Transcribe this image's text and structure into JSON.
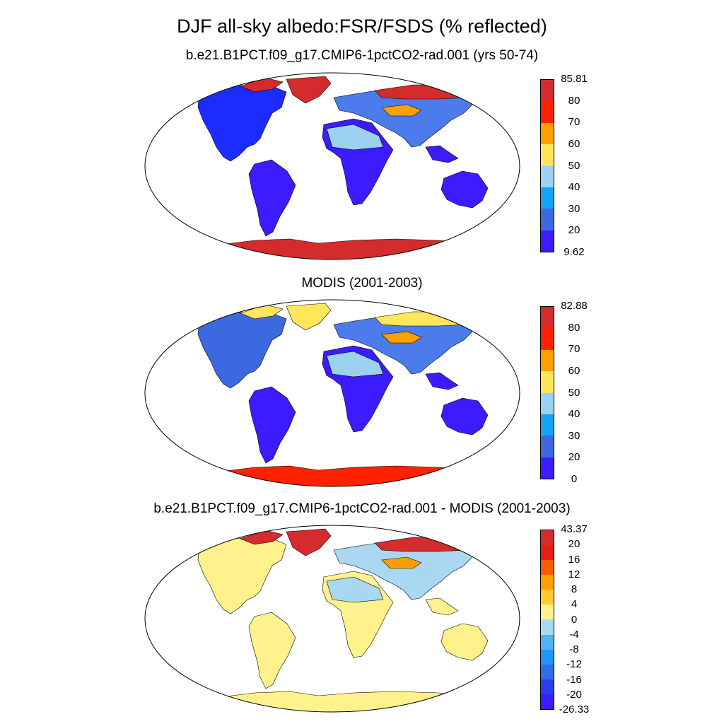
{
  "title": "DJF all-sky albedo:FSR/FSDS (% reflected)",
  "panels": [
    {
      "subtitle": "b.e21.B1PCT.f09_g17.CMIP6-1pctCO2-rad.001 (yrs 50-74)",
      "colorbar": {
        "labels": [
          "85.81",
          "80",
          "70",
          "60",
          "50",
          "40",
          "30",
          "20",
          "9.62"
        ],
        "colors": [
          "#d42c2c",
          "#ff2200",
          "#ff9f00",
          "#ffe65a",
          "#9cd2f0",
          "#14a5fa",
          "#3d69e0",
          "#3a1cff"
        ]
      },
      "fills": {
        "northAmerica": "#1c2cff",
        "greenland": "#d42c2c",
        "southAmerica": "#3a1cff",
        "africa": "#3a1cff",
        "sahara": "#9cd2f0",
        "eurasia": "#4c7cec",
        "siberia": "#d42c2c",
        "centralAsia": "#ff9f00",
        "australia": "#3a1cff",
        "antarctica": "#d42c2c",
        "arcticIslands": "#d42c2c",
        "seAsia": "#3a1cff"
      }
    },
    {
      "subtitle": "MODIS (2001-2003)",
      "colorbar": {
        "labels": [
          "82.88",
          "80",
          "70",
          "60",
          "50",
          "40",
          "30",
          "20",
          "0"
        ],
        "colors": [
          "#d42c2c",
          "#ff2200",
          "#ff9f00",
          "#ffe65a",
          "#9cd2f0",
          "#14a5fa",
          "#3d69e0",
          "#3a1cff"
        ]
      },
      "fills": {
        "northAmerica": "#3d69e0",
        "greenland": "#ffe65a",
        "southAmerica": "#3a1cff",
        "africa": "#3a1cff",
        "sahara": "#9cd2f0",
        "eurasia": "#4c7cec",
        "siberia": "#ffe65a",
        "centralAsia": "#ff9f00",
        "australia": "#3a1cff",
        "antarctica": "#ff2200",
        "arcticIslands": "#ffe65a",
        "seAsia": "#3a1cff"
      }
    },
    {
      "subtitle": "b.e21.B1PCT.f09_g17.CMIP6-1pctCO2-rad.001 - MODIS (2001-2003)",
      "colorbar": {
        "labels": [
          "43.37",
          "20",
          "16",
          "12",
          "8",
          "4",
          "0",
          "-4",
          "-8",
          "-12",
          "-16",
          "-20",
          "-26.33"
        ],
        "colors": [
          "#d42c2c",
          "#e81e10",
          "#ff5a00",
          "#ff9f00",
          "#ffcc33",
          "#fff28c",
          "#aad8f2",
          "#50b4f0",
          "#1e96ff",
          "#2f6fe6",
          "#2a3cf0",
          "#3a1cff"
        ]
      },
      "fills": {
        "northAmerica": "#fff28c",
        "greenland": "#d42c2c",
        "southAmerica": "#fff28c",
        "africa": "#fff28c",
        "sahara": "#aad8f2",
        "eurasia": "#aad8f2",
        "siberia": "#d42c2c",
        "centralAsia": "#ff9f00",
        "australia": "#fff28c",
        "antarctica": "#fff28c",
        "arcticIslands": "#d42c2c",
        "seAsia": "#fff28c"
      }
    }
  ]
}
